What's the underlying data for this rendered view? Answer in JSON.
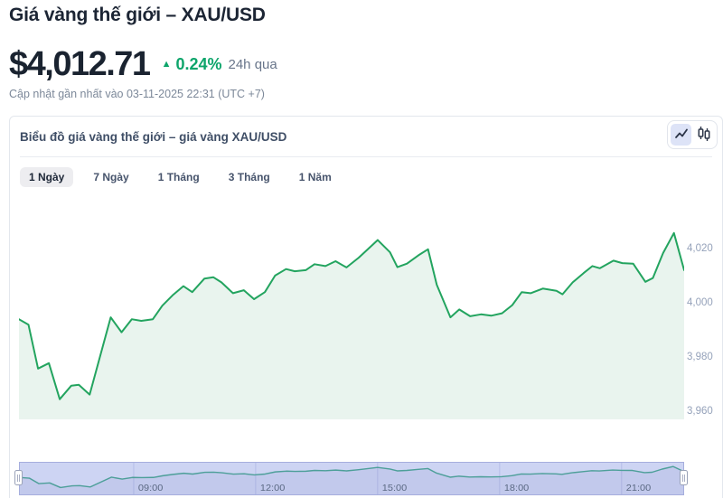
{
  "header": {
    "title": "Giá vàng thế giới – XAU/USD",
    "price": "$4,012.71",
    "change_percent": "0.24%",
    "change_period": "24h qua",
    "updated_text": "Cập nhật gần nhất vào 03-11-2025 22:31 (UTC +7)"
  },
  "panel": {
    "title": "Biểu đồ giá vàng thế giới – giá vàng XAU/USD",
    "tabs": [
      {
        "label": "1 Ngày",
        "active": true
      },
      {
        "label": "7 Ngày",
        "active": false
      },
      {
        "label": "1 Tháng",
        "active": false
      },
      {
        "label": "3 Tháng",
        "active": false
      },
      {
        "label": "1 Năm",
        "active": false
      }
    ],
    "chart_type": {
      "selected": "line",
      "options": [
        "line",
        "candlestick"
      ]
    }
  },
  "chart_data": {
    "type": "area",
    "title": "Biểu đồ giá vàng thế giới – giá vàng XAU/USD",
    "series_name": "XAU/USD",
    "x_range": [
      "06:12",
      "22:31"
    ],
    "x_ticks": [
      "09:00",
      "12:00",
      "15:00",
      "18:00",
      "21:00"
    ],
    "y_ticks": [
      {
        "value": 4020,
        "label": "4,020"
      },
      {
        "value": 4000,
        "label": "4,000"
      },
      {
        "value": 3980,
        "label": "3,980"
      },
      {
        "value": 3960,
        "label": "3,960"
      }
    ],
    "ylim": [
      3958,
      4036
    ],
    "line_color": "#23a45f",
    "fill_color": "#e9f4ee",
    "points": [
      [
        "06:12",
        3994.6
      ],
      [
        "06:26",
        3992.6
      ],
      [
        "06:40",
        3976.4
      ],
      [
        "06:56",
        3978.4
      ],
      [
        "07:12",
        3965.1
      ],
      [
        "07:29",
        3970.1
      ],
      [
        "07:40",
        3970.4
      ],
      [
        "07:56",
        3966.8
      ],
      [
        "08:27",
        3995.3
      ],
      [
        "08:43",
        3989.8
      ],
      [
        "08:58",
        3994.6
      ],
      [
        "09:12",
        3994.0
      ],
      [
        "09:29",
        3994.6
      ],
      [
        "09:43",
        3999.6
      ],
      [
        "09:58",
        4003.4
      ],
      [
        "10:14",
        4006.8
      ],
      [
        "10:27",
        4004.6
      ],
      [
        "10:45",
        4009.6
      ],
      [
        "10:58",
        4010.1
      ],
      [
        "11:10",
        4008.2
      ],
      [
        "11:27",
        4004.2
      ],
      [
        "11:43",
        4005.3
      ],
      [
        "11:58",
        4002.0
      ],
      [
        "12:14",
        4004.6
      ],
      [
        "12:29",
        4010.7
      ],
      [
        "12:45",
        4013.1
      ],
      [
        "12:58",
        4012.3
      ],
      [
        "13:14",
        4012.7
      ],
      [
        "13:27",
        4014.9
      ],
      [
        "13:43",
        4014.2
      ],
      [
        "13:58",
        4016.0
      ],
      [
        "14:14",
        4013.7
      ],
      [
        "14:32",
        4017.3
      ],
      [
        "15:00",
        4023.8
      ],
      [
        "15:18",
        4019.3
      ],
      [
        "15:29",
        4013.8
      ],
      [
        "15:43",
        4015.1
      ],
      [
        "16:00",
        4018.2
      ],
      [
        "16:14",
        4020.4
      ],
      [
        "16:27",
        4007.3
      ],
      [
        "16:47",
        3995.3
      ],
      [
        "17:00",
        3998.2
      ],
      [
        "17:16",
        3995.7
      ],
      [
        "17:32",
        3996.4
      ],
      [
        "17:47",
        3995.9
      ],
      [
        "18:03",
        3996.8
      ],
      [
        "18:18",
        3999.8
      ],
      [
        "18:32",
        4004.6
      ],
      [
        "18:45",
        4004.2
      ],
      [
        "19:03",
        4005.9
      ],
      [
        "19:23",
        4005.1
      ],
      [
        "19:32",
        4003.8
      ],
      [
        "19:47",
        4008.2
      ],
      [
        "20:03",
        4011.6
      ],
      [
        "20:16",
        4014.2
      ],
      [
        "20:27",
        4013.4
      ],
      [
        "20:47",
        4016.2
      ],
      [
        "21:00",
        4015.3
      ],
      [
        "21:16",
        4015.1
      ],
      [
        "21:34",
        4008.4
      ],
      [
        "21:45",
        4009.8
      ],
      [
        "22:00",
        4019.0
      ],
      [
        "22:16",
        4026.4
      ],
      [
        "22:31",
        4012.71
      ]
    ]
  },
  "navigator": {
    "bg_color": "#cdd4f3",
    "border_color": "#a6aedd",
    "grid_color": "#b6bde8",
    "line_color": "#4d9f99",
    "label_color": "#5b6983",
    "x_ticks": [
      "09:00",
      "12:00",
      "15:00",
      "18:00",
      "21:00"
    ]
  },
  "colors": {
    "positive": "#0ea56b",
    "title_text": "#1c2534",
    "muted_text": "#7c8899",
    "axis_text": "#95a2ba"
  }
}
